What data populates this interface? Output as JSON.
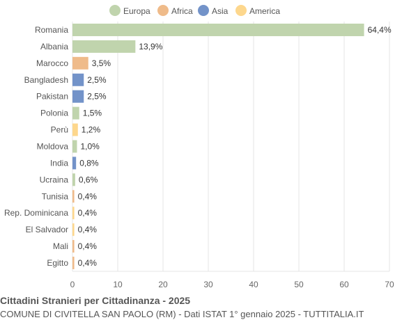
{
  "chart_data": {
    "type": "bar",
    "orientation": "horizontal",
    "title": "Cittadini Stranieri per Cittadinanza - 2025",
    "subtitle": "COMUNE DI CIVITELLA SAN PAOLO (RM) - Dati ISTAT 1° gennaio 2025 - TUTTITALIA.IT",
    "xlim": [
      0,
      70
    ],
    "xticks": [
      0,
      10,
      20,
      30,
      40,
      50,
      60,
      70
    ],
    "grid": true,
    "legend_position": "top",
    "legend": [
      {
        "name": "Europa",
        "color": "#c0d4ad"
      },
      {
        "name": "Africa",
        "color": "#efbb8a"
      },
      {
        "name": "Asia",
        "color": "#7393c9"
      },
      {
        "name": "America",
        "color": "#fdd78d"
      }
    ],
    "categories": [
      "Romania",
      "Albania",
      "Marocco",
      "Bangladesh",
      "Pakistan",
      "Polonia",
      "Perù",
      "Moldova",
      "India",
      "Ucraina",
      "Tunisia",
      "Rep. Dominicana",
      "El Salvador",
      "Mali",
      "Egitto"
    ],
    "values": [
      64.4,
      13.9,
      3.5,
      2.5,
      2.5,
      1.5,
      1.2,
      1.0,
      0.8,
      0.6,
      0.4,
      0.4,
      0.4,
      0.4,
      0.4
    ],
    "value_labels": [
      "64,4%",
      "13,9%",
      "3,5%",
      "2,5%",
      "2,5%",
      "1,5%",
      "1,2%",
      "1,0%",
      "0,8%",
      "0,6%",
      "0,4%",
      "0,4%",
      "0,4%",
      "0,4%",
      "0,4%"
    ],
    "groups": [
      "Europa",
      "Europa",
      "Africa",
      "Asia",
      "Asia",
      "Europa",
      "America",
      "Europa",
      "Asia",
      "Europa",
      "Africa",
      "America",
      "America",
      "Africa",
      "Africa"
    ]
  }
}
